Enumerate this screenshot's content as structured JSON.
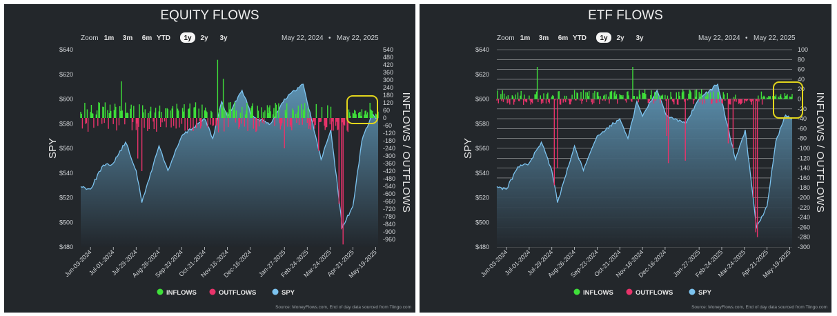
{
  "colors": {
    "background": "#23272b",
    "inflows": "#3fe03a",
    "outflows": "#e8336a",
    "spy_line": "#7cc3ef",
    "spy_fill_top": "#5f97b8",
    "spy_fill_bottom": "#22272c",
    "highlight": "#e3d61c",
    "grid": "#d8d8d8"
  },
  "zoom": {
    "label": "Zoom",
    "buttons": [
      "1m",
      "3m",
      "6m",
      "YTD",
      "1y",
      "2y",
      "3y"
    ],
    "active": "1y"
  },
  "date_range": {
    "from": "May 22, 2024",
    "separator": "•",
    "to": "May 22, 2025"
  },
  "legend": [
    {
      "label": "INFLOWS",
      "color": "#3fe03a"
    },
    {
      "label": "OUTFLOWS",
      "color": "#e8336a"
    },
    {
      "label": "SPY",
      "color": "#7cc3ef"
    }
  ],
  "source": "Source: MoneyFlows.com, End of day data sourced from Tiingo.com",
  "chart_data": [
    {
      "type": "bar",
      "title": "EQUITY FLOWS",
      "ylabel_left": "SPY",
      "ylabel_right": "INFLOWS / OUTFLOWS",
      "left_axis": {
        "ticks": [
          "$640",
          "$620",
          "$600",
          "$580",
          "$560",
          "$540",
          "$520",
          "$500",
          "$480"
        ],
        "range": [
          480,
          640
        ]
      },
      "right_axis": {
        "ticks": [
          "540",
          "480",
          "420",
          "360",
          "300",
          "240",
          "180",
          "120",
          "60",
          "0",
          "-60",
          "-120",
          "-180",
          "-240",
          "-300",
          "-360",
          "-420",
          "-480",
          "-540",
          "-600",
          "-660",
          "-720",
          "-780",
          "-840",
          "-900",
          "-960"
        ],
        "range": [
          -1020,
          540
        ]
      },
      "x_ticks": [
        "Jun-03-2024",
        "Jul-01-2024",
        "Jul-29-2024",
        "Aug-26-2024",
        "Sep-23-2024",
        "Oct-21-2024",
        "Nov-18-2024",
        "Dec-16-2024",
        "Jan-27-2025",
        "Feb-24-2025",
        "Mar-24-2025",
        "Apr-21-2025",
        "May-19-2025"
      ],
      "grid": false,
      "legend_position": "bottom",
      "spy": [
        {
          "date": "2024-05-22",
          "value": 529
        },
        {
          "date": "2024-06-03",
          "value": 527
        },
        {
          "date": "2024-06-17",
          "value": 545
        },
        {
          "date": "2024-07-01",
          "value": 548
        },
        {
          "date": "2024-07-16",
          "value": 565
        },
        {
          "date": "2024-07-29",
          "value": 542
        },
        {
          "date": "2024-08-05",
          "value": 516
        },
        {
          "date": "2024-08-26",
          "value": 562
        },
        {
          "date": "2024-09-06",
          "value": 542
        },
        {
          "date": "2024-09-23",
          "value": 570
        },
        {
          "date": "2024-10-21",
          "value": 584
        },
        {
          "date": "2024-10-31",
          "value": 568
        },
        {
          "date": "2024-11-11",
          "value": 598
        },
        {
          "date": "2024-11-18",
          "value": 586
        },
        {
          "date": "2024-12-06",
          "value": 607
        },
        {
          "date": "2024-12-18",
          "value": 586
        },
        {
          "date": "2025-01-10",
          "value": 580
        },
        {
          "date": "2025-01-27",
          "value": 600
        },
        {
          "date": "2025-02-19",
          "value": 612
        },
        {
          "date": "2025-03-13",
          "value": 551
        },
        {
          "date": "2025-03-25",
          "value": 575
        },
        {
          "date": "2025-04-08",
          "value": 496
        },
        {
          "date": "2025-04-21",
          "value": 513
        },
        {
          "date": "2025-05-02",
          "value": 566
        },
        {
          "date": "2025-05-14",
          "value": 587
        },
        {
          "date": "2025-05-22",
          "value": 584
        }
      ],
      "flows": [
        {
          "date": "2024-07-11",
          "value": 290
        },
        {
          "date": "2024-07-31",
          "value": -320
        },
        {
          "date": "2024-08-05",
          "value": -420
        },
        {
          "date": "2024-11-06",
          "value": 460
        },
        {
          "date": "2024-11-13",
          "value": 310
        },
        {
          "date": "2025-01-27",
          "value": -240
        },
        {
          "date": "2025-03-10",
          "value": -260
        },
        {
          "date": "2025-04-04",
          "value": -680
        },
        {
          "date": "2025-04-07",
          "value": -880
        },
        {
          "date": "2025-04-09",
          "value": -1000
        },
        {
          "date": "2025-05-12",
          "value": 120
        }
      ]
    },
    {
      "type": "bar",
      "title": "ETF FLOWS",
      "ylabel_left": "SPY",
      "ylabel_right": "INFLOWS / OUTFLOWS",
      "left_axis": {
        "ticks": [
          "$640",
          "$620",
          "$600",
          "$580",
          "$560",
          "$540",
          "$520",
          "$500",
          "$480"
        ],
        "range": [
          480,
          640
        ]
      },
      "right_axis": {
        "ticks": [
          "100",
          "80",
          "60",
          "40",
          "20",
          "0",
          "-20",
          "-40",
          "-60",
          "-80",
          "-100",
          "-120",
          "-140",
          "-160",
          "-180",
          "-200",
          "-220",
          "-240",
          "-260",
          "-280",
          "-300"
        ],
        "range": [
          -300,
          100
        ]
      },
      "x_ticks": [
        "Jun-03-2024",
        "Jul-01-2024",
        "Jul-29-2024",
        "Aug-26-2024",
        "Sep-23-2024",
        "Oct-21-2024",
        "Nov-18-2024",
        "Dec-16-2024",
        "Jan-27-2025",
        "Feb-24-2025",
        "Mar-24-2025",
        "Apr-21-2025",
        "May-19-2025"
      ],
      "grid": true,
      "legend_position": "bottom",
      "spy": [
        {
          "date": "2024-05-22",
          "value": 529
        },
        {
          "date": "2024-06-03",
          "value": 527
        },
        {
          "date": "2024-06-17",
          "value": 545
        },
        {
          "date": "2024-07-01",
          "value": 548
        },
        {
          "date": "2024-07-16",
          "value": 565
        },
        {
          "date": "2024-07-29",
          "value": 542
        },
        {
          "date": "2024-08-05",
          "value": 516
        },
        {
          "date": "2024-08-26",
          "value": 562
        },
        {
          "date": "2024-09-06",
          "value": 542
        },
        {
          "date": "2024-09-23",
          "value": 570
        },
        {
          "date": "2024-10-21",
          "value": 584
        },
        {
          "date": "2024-10-31",
          "value": 568
        },
        {
          "date": "2024-11-11",
          "value": 598
        },
        {
          "date": "2024-11-18",
          "value": 586
        },
        {
          "date": "2024-12-06",
          "value": 607
        },
        {
          "date": "2024-12-18",
          "value": 586
        },
        {
          "date": "2025-01-10",
          "value": 580
        },
        {
          "date": "2025-01-27",
          "value": 600
        },
        {
          "date": "2025-02-19",
          "value": 612
        },
        {
          "date": "2025-03-13",
          "value": 551
        },
        {
          "date": "2025-03-25",
          "value": 575
        },
        {
          "date": "2025-04-08",
          "value": 496
        },
        {
          "date": "2025-04-21",
          "value": 513
        },
        {
          "date": "2025-05-02",
          "value": 566
        },
        {
          "date": "2025-05-14",
          "value": 587
        },
        {
          "date": "2025-05-22",
          "value": 584
        }
      ],
      "flows": [
        {
          "date": "2024-07-11",
          "value": 65
        },
        {
          "date": "2024-08-01",
          "value": -175
        },
        {
          "date": "2024-08-05",
          "value": -140
        },
        {
          "date": "2024-11-06",
          "value": 65
        },
        {
          "date": "2024-12-18",
          "value": -75
        },
        {
          "date": "2024-12-20",
          "value": -130
        },
        {
          "date": "2025-01-10",
          "value": -125
        },
        {
          "date": "2025-03-04",
          "value": -90
        },
        {
          "date": "2025-03-10",
          "value": -100
        },
        {
          "date": "2025-04-04",
          "value": -200
        },
        {
          "date": "2025-04-07",
          "value": -270
        },
        {
          "date": "2025-04-09",
          "value": -280
        }
      ]
    }
  ]
}
